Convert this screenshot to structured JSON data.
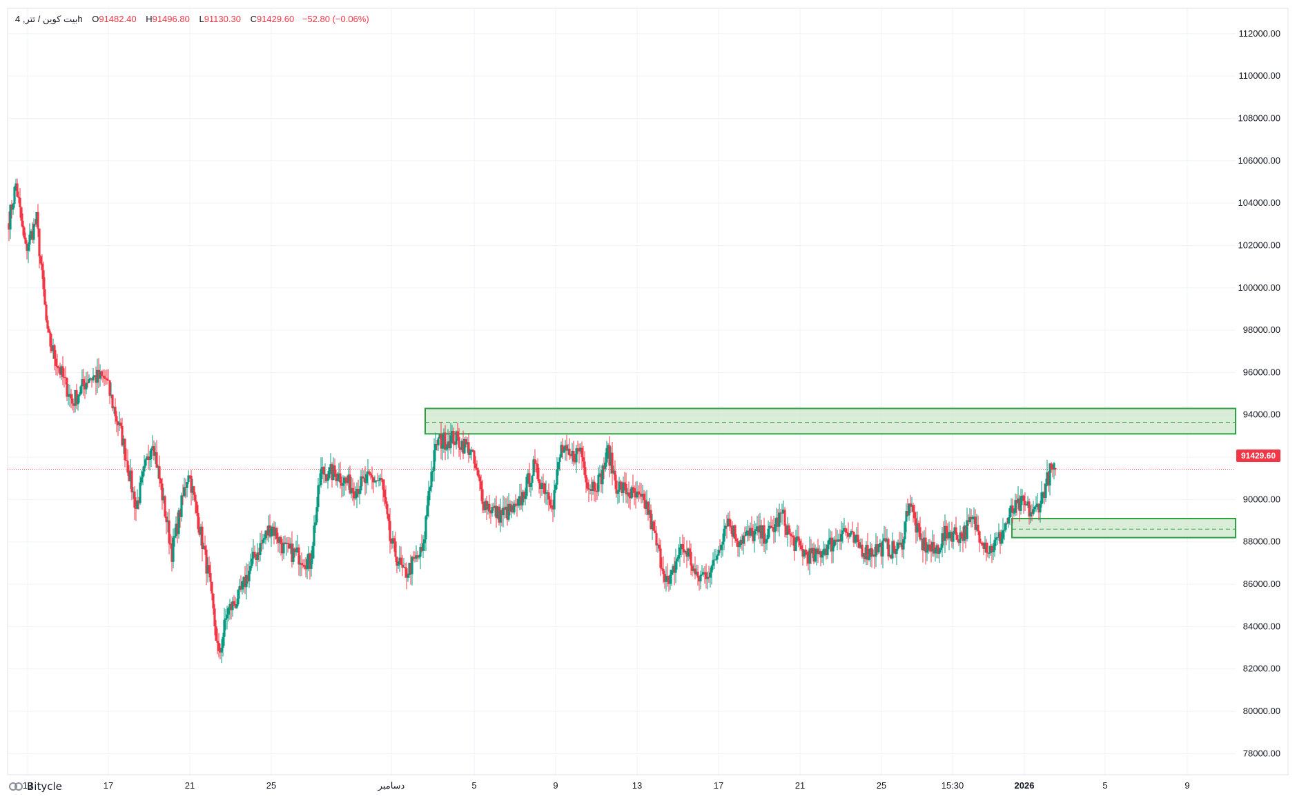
{
  "legend": {
    "symbol": "بیت کوین / تتر, 4h",
    "open_label": "O",
    "open": "91482.40",
    "high_label": "H",
    "high": "91496.80",
    "low_label": "L",
    "low": "91130.30",
    "close_label": "C",
    "close": "91429.60",
    "change": "−52.80 (−0.06%)"
  },
  "last_price": "91429.60",
  "brand": "Bitycle",
  "colors": {
    "up": "#089981",
    "down": "#f23645",
    "zone_fill": "#cfe9cf",
    "zone_border": "#2ea043",
    "grid": "#f0f3fa"
  },
  "chart_data": {
    "type": "candlestick",
    "ylim": [
      77000,
      113200
    ],
    "y_ticks": [
      "112000.00",
      "110000.00",
      "108000.00",
      "106000.00",
      "104000.00",
      "102000.00",
      "100000.00",
      "98000.00",
      "96000.00",
      "94000.00",
      "92000.00",
      "90000.00",
      "88000.00",
      "86000.00",
      "84000.00",
      "82000.00",
      "80000.00",
      "78000.00"
    ],
    "x_ticks": [
      "13",
      "17",
      "21",
      "25",
      "دسامبر",
      "5",
      "9",
      "13",
      "17",
      "21",
      "25",
      "15:30",
      "2026",
      "5",
      "9"
    ],
    "x_ticks_bold": [
      "2026"
    ],
    "anchors": [
      [
        0,
        103200
      ],
      [
        5,
        104900
      ],
      [
        12,
        101800
      ],
      [
        20,
        103200
      ],
      [
        28,
        97700
      ],
      [
        38,
        95900
      ],
      [
        46,
        94600
      ],
      [
        58,
        95800
      ],
      [
        70,
        95700
      ],
      [
        82,
        92900
      ],
      [
        92,
        89600
      ],
      [
        104,
        92900
      ],
      [
        118,
        87500
      ],
      [
        130,
        91400
      ],
      [
        140,
        88000
      ],
      [
        145,
        86200
      ],
      [
        152,
        82500
      ],
      [
        158,
        84700
      ],
      [
        166,
        85300
      ],
      [
        178,
        87300
      ],
      [
        190,
        88800
      ],
      [
        200,
        87600
      ],
      [
        212,
        87300
      ],
      [
        218,
        87000
      ],
      [
        226,
        91300
      ],
      [
        238,
        91200
      ],
      [
        250,
        90500
      ],
      [
        262,
        91000
      ],
      [
        270,
        90800
      ],
      [
        276,
        88100
      ],
      [
        286,
        86400
      ],
      [
        300,
        87600
      ],
      [
        304,
        90500
      ],
      [
        310,
        92700
      ],
      [
        322,
        92900
      ],
      [
        334,
        92400
      ],
      [
        344,
        89900
      ],
      [
        354,
        89300
      ],
      [
        368,
        89500
      ],
      [
        380,
        91500
      ],
      [
        394,
        89900
      ],
      [
        400,
        92400
      ],
      [
        406,
        91900
      ],
      [
        414,
        92400
      ],
      [
        420,
        90600
      ],
      [
        428,
        90900
      ],
      [
        434,
        92300
      ],
      [
        440,
        90700
      ],
      [
        452,
        90200
      ],
      [
        462,
        89700
      ],
      [
        470,
        87600
      ],
      [
        478,
        85900
      ],
      [
        486,
        87700
      ],
      [
        492,
        87500
      ],
      [
        498,
        86200
      ],
      [
        510,
        86800
      ],
      [
        520,
        89100
      ],
      [
        528,
        88100
      ],
      [
        540,
        88400
      ],
      [
        550,
        88300
      ],
      [
        560,
        89300
      ],
      [
        566,
        88200
      ],
      [
        574,
        87600
      ],
      [
        584,
        87200
      ],
      [
        590,
        87700
      ],
      [
        598,
        88000
      ],
      [
        604,
        88600
      ],
      [
        612,
        88000
      ],
      [
        622,
        87500
      ],
      [
        634,
        87800
      ],
      [
        640,
        87600
      ],
      [
        646,
        87700
      ],
      [
        652,
        90000
      ],
      [
        660,
        88000
      ],
      [
        670,
        87500
      ],
      [
        680,
        88500
      ],
      [
        690,
        88300
      ],
      [
        698,
        89000
      ],
      [
        710,
        87600
      ],
      [
        718,
        88200
      ],
      [
        726,
        89400
      ],
      [
        734,
        89800
      ],
      [
        742,
        89300
      ],
      [
        748,
        90100
      ],
      [
        754,
        91300
      ],
      [
        758,
        91429.6
      ]
    ],
    "last_candle": {
      "open": 91482.4,
      "high": 91496.8,
      "low": 91130.3,
      "close": 91429.6
    },
    "zones": [
      {
        "x_start": 299,
        "y_top": 94300,
        "y_bottom": 93100,
        "mid": 93650
      },
      {
        "x_start": 724,
        "y_top": 89100,
        "y_bottom": 88200,
        "mid": 88600
      }
    ],
    "price_line": 91429.6
  }
}
